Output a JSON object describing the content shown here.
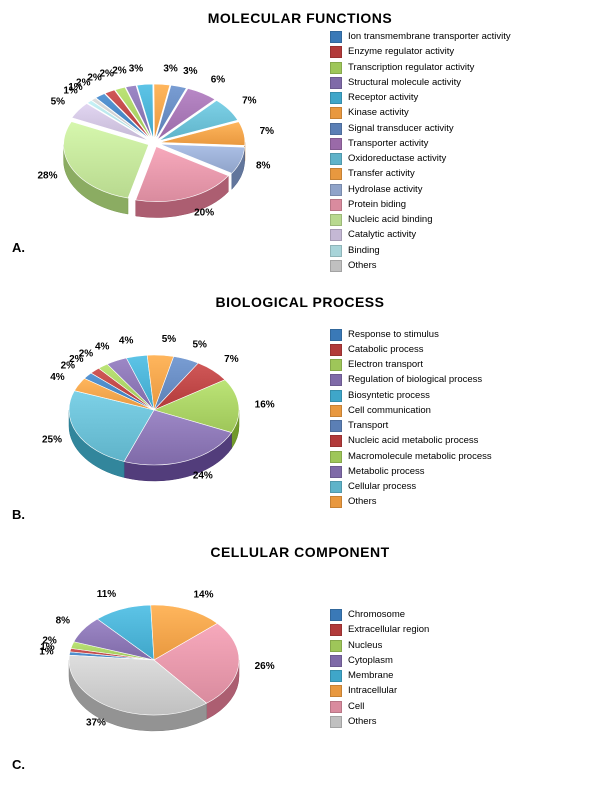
{
  "charts": [
    {
      "letter": "A.",
      "title": "MOLECULAR FUNCTIONS",
      "title_fontsize": 14,
      "label_fontsize": 10,
      "legend_fontsize": 9.5,
      "slices": [
        {
          "label": "Ion transmembrane transporter activity",
          "value": 2,
          "color": "#3a79b7"
        },
        {
          "label": "Enzyme regulator activity",
          "value": 2,
          "color": "#b23a3a"
        },
        {
          "label": "Transcription regulator activity",
          "value": 2,
          "color": "#9ec659"
        },
        {
          "label": "Structural molecule activity",
          "value": 2,
          "color": "#7f6aa8"
        },
        {
          "label": "Receptor activity",
          "value": 3,
          "color": "#3fa6c9"
        },
        {
          "label": "Kinase activity",
          "value": 3,
          "color": "#e8983f"
        },
        {
          "label": "Signal transducer activity",
          "value": 3,
          "color": "#5b7fb5"
        },
        {
          "label": "Transporter activity",
          "value": 6,
          "color": "#9a6aa8"
        },
        {
          "label": "Oxidoreductase activity",
          "value": 7,
          "color": "#5fb3c9"
        },
        {
          "label": "Transfer activity",
          "value": 7,
          "color": "#e8983f"
        },
        {
          "label": "Hydrolase activity",
          "value": 8,
          "color": "#8fa3c9"
        },
        {
          "label": "Protein biding",
          "value": 20,
          "color": "#d98b9e"
        },
        {
          "label": "Nucleic acid binding",
          "value": 28,
          "color": "#b8d98f"
        },
        {
          "label": "Catalytic activity",
          "value": 5,
          "color": "#c4b8d4"
        },
        {
          "label": "Binding",
          "value": 1,
          "color": "#a8d4d9"
        },
        {
          "label": "Others",
          "value": 1,
          "color": "#c0c0c0"
        }
      ],
      "start_angle": -40,
      "explode_all": true,
      "explode_dist": 6
    },
    {
      "letter": "B.",
      "title": "BIOLOGICAL PROCESS",
      "title_fontsize": 14,
      "label_fontsize": 10,
      "legend_fontsize": 9.5,
      "slices": [
        {
          "label": "Response to stimulus",
          "value": 2,
          "color": "#3a79b7"
        },
        {
          "label": "Catabolic process",
          "value": 2,
          "color": "#b23a3a"
        },
        {
          "label": "Electron transport",
          "value": 2,
          "color": "#9ec659"
        },
        {
          "label": "Regulation of biological process",
          "value": 4,
          "color": "#7f6aa8"
        },
        {
          "label": "Biosyntetic process",
          "value": 4,
          "color": "#3fa6c9"
        },
        {
          "label": "Cell communication",
          "value": 5,
          "color": "#e8983f"
        },
        {
          "label": "Transport",
          "value": 5,
          "color": "#5b7fb5"
        },
        {
          "label": "Nucleic acid metabolic process",
          "value": 7,
          "color": "#b23a3a"
        },
        {
          "label": "Macromolecule metabolic process",
          "value": 16,
          "color": "#9ec659"
        },
        {
          "label": "Metabolic process",
          "value": 24,
          "color": "#7f6aa8"
        },
        {
          "label": "Cellular process",
          "value": 25,
          "color": "#5fb3c9"
        },
        {
          "label": "Others",
          "value": 4,
          "color": "#e8983f"
        }
      ],
      "start_angle": -55,
      "explode_all": false
    },
    {
      "letter": "C.",
      "title": "CELLULAR COMPONENT",
      "title_fontsize": 14,
      "label_fontsize": 10,
      "legend_fontsize": 9.5,
      "slices": [
        {
          "label": "Chromosome",
          "value": 1,
          "color": "#3a79b7"
        },
        {
          "label": "Extracellular region",
          "value": 1,
          "color": "#b23a3a"
        },
        {
          "label": "Nucleus",
          "value": 2,
          "color": "#9ec659"
        },
        {
          "label": "Cytoplasm",
          "value": 8,
          "color": "#7f6aa8"
        },
        {
          "label": "Membrane",
          "value": 11,
          "color": "#3fa6c9"
        },
        {
          "label": "Intracellular",
          "value": 14,
          "color": "#e8983f"
        },
        {
          "label": "Cell",
          "value": 26,
          "color": "#d98b9e"
        },
        {
          "label": "Others",
          "value": 37,
          "color": "#c0c0c0"
        }
      ],
      "start_angle": -85,
      "explode_all": false
    }
  ]
}
